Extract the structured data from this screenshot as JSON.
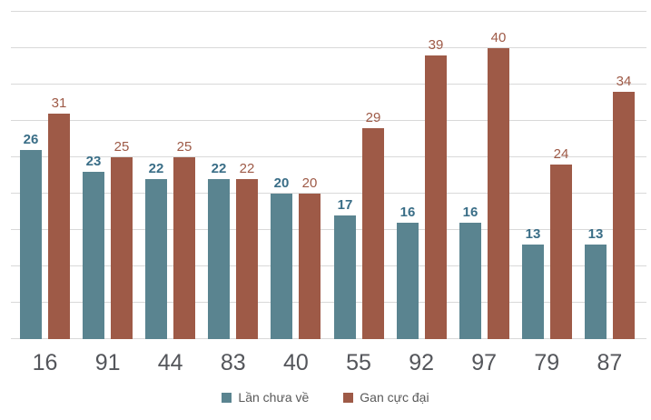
{
  "chart_data": {
    "type": "bar",
    "title": "",
    "xlabel": "",
    "ylabel": "",
    "categories": [
      "16",
      "91",
      "44",
      "83",
      "40",
      "55",
      "92",
      "97",
      "79",
      "87"
    ],
    "series": [
      {
        "name": "Lần chưa về",
        "color": "#5A8490",
        "label_color": "#3A6E87",
        "values": [
          26,
          23,
          22,
          22,
          20,
          17,
          16,
          16,
          13,
          13
        ]
      },
      {
        "name": "Gan cực đại",
        "color": "#9E5A47",
        "label_color": "#9E5A47",
        "values": [
          31,
          25,
          25,
          22,
          20,
          29,
          39,
          40,
          24,
          34
        ]
      }
    ],
    "ylim": [
      0,
      45
    ],
    "grid_step": 5,
    "grid": true,
    "y_tick_labels_visible": false,
    "legend_position": "bottom",
    "palette": {
      "gridline": "#D9D9D9",
      "axis_label": "#54565B",
      "legend_text": "#595959",
      "background": "#FFFFFF"
    }
  }
}
